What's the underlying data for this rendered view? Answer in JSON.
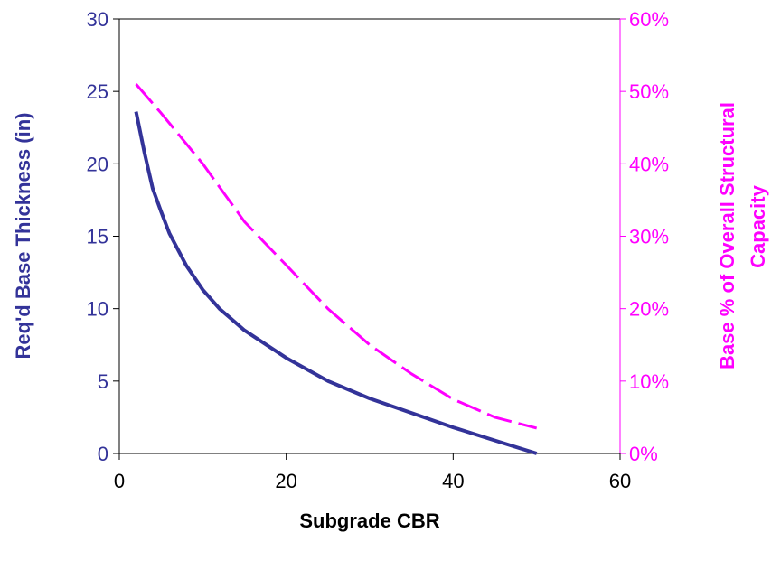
{
  "chart_data": {
    "type": "line",
    "title": "",
    "xlabel": "Subgrade CBR",
    "ylabel_left": "Req'd Base Thickness (in)",
    "ylabel_right_lines": [
      "Base % of Overall Structural",
      "Capacity"
    ],
    "xlim": [
      0,
      60
    ],
    "ylim_left": [
      0,
      30
    ],
    "ylim_right": [
      0,
      0.6
    ],
    "x_ticks": [
      "0",
      "20",
      "40",
      "60"
    ],
    "y_left_ticks": [
      "0",
      "5",
      "10",
      "15",
      "20",
      "25",
      "30"
    ],
    "y_right_ticks": [
      "0%",
      "10%",
      "20%",
      "30%",
      "40%",
      "50%",
      "60%"
    ],
    "grid": false,
    "legend": "none",
    "colors": {
      "left_axis": "#333399",
      "right_axis": "#ff00ff",
      "frame": "#000000"
    },
    "series": [
      {
        "axis": "left",
        "style": "solid",
        "color": "#333399",
        "x": [
          2,
          3,
          4,
          5,
          6,
          8,
          10,
          12,
          15,
          20,
          25,
          30,
          35,
          40,
          45,
          50
        ],
        "y": [
          23.6,
          20.8,
          18.3,
          16.7,
          15.2,
          13.0,
          11.3,
          10.0,
          8.5,
          6.6,
          5.0,
          3.8,
          2.8,
          1.8,
          0.9,
          0.0
        ]
      },
      {
        "axis": "right",
        "style": "dashed",
        "color": "#ff00ff",
        "x": [
          2,
          5,
          10,
          15,
          20,
          25,
          30,
          35,
          40,
          45,
          50
        ],
        "y": [
          0.51,
          0.47,
          0.4,
          0.32,
          0.26,
          0.2,
          0.15,
          0.11,
          0.075,
          0.05,
          0.035
        ]
      }
    ]
  }
}
